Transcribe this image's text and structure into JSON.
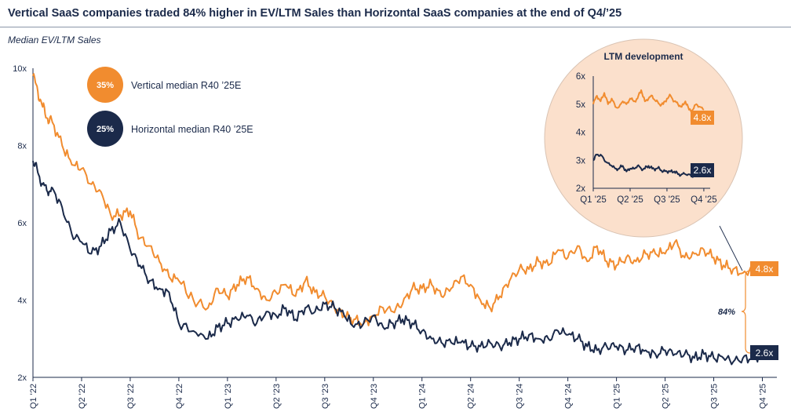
{
  "header": {
    "title": "Vertical SaaS companies traded 84% higher in EV/LTM Sales than Horizontal SaaS companies at the end of Q4/’25",
    "subtitle": "Median EV/LTM Sales"
  },
  "colors": {
    "vertical": "#f18c2f",
    "horizontal": "#1b2a4a",
    "inset_fill": "#fbe0cc",
    "text": "#1b2a4a"
  },
  "legend": [
    {
      "badge": "35%",
      "label": "Vertical median R40 ’25E"
    },
    {
      "badge": "25%",
      "label": "Horizontal median R40 ’25E"
    }
  ],
  "end_labels": {
    "vertical": "4.8x",
    "horizontal": "2.6x"
  },
  "difference_label": "84%",
  "chart_data": [
    {
      "type": "line",
      "title": "Median EV/LTM Sales",
      "ylim": [
        2,
        10
      ],
      "y_ticks": [
        "2x",
        "4x",
        "6x",
        "8x",
        "10x"
      ],
      "y_tick_values": [
        2,
        4,
        6,
        8,
        10
      ],
      "x_ticks": [
        "Q1 '22",
        "Q2 '22",
        "Q3 '22",
        "Q4 '22",
        "Q1 '23",
        "Q2 '23",
        "Q3 '23",
        "Q4 '23",
        "Q1 '24",
        "Q2 '24",
        "Q3 '24",
        "Q4 '24",
        "Q1 '25",
        "Q2 '25",
        "Q3 '25",
        "Q4 '25"
      ],
      "x_tick_values": [
        0,
        1,
        2,
        3,
        4,
        5,
        6,
        7,
        8,
        9,
        10,
        11,
        12,
        13,
        14,
        15
      ],
      "xlim": [
        0,
        15.25
      ],
      "series": [
        {
          "name": "Vertical SaaS",
          "x": [
            0,
            0.1,
            0.2,
            0.3,
            0.4,
            0.6,
            0.8,
            1.0,
            1.2,
            1.4,
            1.6,
            1.8,
            2.0,
            2.2,
            2.4,
            2.6,
            2.8,
            3.0,
            3.3,
            3.6,
            3.8,
            4.0,
            4.2,
            4.4,
            4.6,
            4.8,
            5.0,
            5.2,
            5.4,
            5.6,
            5.8,
            6.0,
            6.2,
            6.4,
            6.6,
            6.8,
            7.0,
            7.2,
            7.4,
            7.6,
            7.8,
            8.0,
            8.2,
            8.4,
            8.6,
            8.8,
            9.0,
            9.2,
            9.4,
            9.6,
            9.8,
            10.0,
            10.2,
            10.4,
            10.6,
            10.8,
            11.0,
            11.2,
            11.4,
            11.6,
            11.8,
            12.0,
            12.2,
            12.4,
            12.6,
            12.8,
            13.0,
            13.2,
            13.4,
            13.6,
            13.8,
            14.0,
            14.2,
            14.4,
            14.6,
            14.8,
            15.0
          ],
          "values": [
            9.8,
            9.4,
            9.0,
            8.7,
            8.6,
            8.0,
            7.5,
            7.4,
            7.0,
            6.8,
            6.2,
            6.2,
            6.3,
            5.6,
            5.4,
            5.0,
            4.6,
            4.5,
            4.0,
            3.8,
            4.3,
            4.1,
            4.4,
            4.6,
            4.3,
            4.0,
            4.2,
            4.4,
            4.1,
            4.5,
            4.2,
            4.1,
            3.8,
            3.6,
            3.5,
            3.4,
            3.6,
            3.8,
            3.7,
            3.9,
            4.3,
            4.3,
            4.4,
            4.1,
            4.3,
            4.6,
            4.4,
            4.0,
            3.8,
            4.1,
            4.5,
            4.8,
            4.8,
            5.0,
            4.9,
            5.3,
            5.1,
            5.4,
            5.0,
            5.4,
            5.0,
            4.9,
            5.1,
            5.0,
            5.2,
            5.2,
            5.2,
            5.5,
            5.1,
            5.2,
            5.3,
            5.1,
            4.9,
            4.8,
            4.7,
            4.8,
            4.8
          ]
        },
        {
          "name": "Horizontal SaaS",
          "x": [
            0,
            0.1,
            0.2,
            0.3,
            0.4,
            0.6,
            0.8,
            1.0,
            1.2,
            1.4,
            1.6,
            1.8,
            2.0,
            2.2,
            2.4,
            2.6,
            2.8,
            3.0,
            3.3,
            3.6,
            3.8,
            4.0,
            4.2,
            4.4,
            4.6,
            4.8,
            5.0,
            5.2,
            5.4,
            5.6,
            5.8,
            6.0,
            6.2,
            6.4,
            6.6,
            6.8,
            7.0,
            7.2,
            7.4,
            7.6,
            7.8,
            8.0,
            8.2,
            8.4,
            8.6,
            8.8,
            9.0,
            9.2,
            9.4,
            9.6,
            9.8,
            10.0,
            10.2,
            10.4,
            10.6,
            10.8,
            11.0,
            11.2,
            11.4,
            11.6,
            11.8,
            12.0,
            12.2,
            12.4,
            12.6,
            12.8,
            13.0,
            13.2,
            13.4,
            13.6,
            13.8,
            14.0,
            14.2,
            14.4,
            14.6,
            14.8,
            15.0
          ],
          "values": [
            7.6,
            7.3,
            7.0,
            6.8,
            6.9,
            6.4,
            5.7,
            5.5,
            5.2,
            5.4,
            5.8,
            6.0,
            5.3,
            4.9,
            4.5,
            4.3,
            4.2,
            3.4,
            3.2,
            3.0,
            3.3,
            3.4,
            3.5,
            3.6,
            3.4,
            3.7,
            3.6,
            3.8,
            3.5,
            3.8,
            3.7,
            3.9,
            3.8,
            3.6,
            3.3,
            3.4,
            3.6,
            3.3,
            3.4,
            3.5,
            3.4,
            3.2,
            3.0,
            2.9,
            2.9,
            2.9,
            2.8,
            2.8,
            2.9,
            2.8,
            2.9,
            3.0,
            3.1,
            3.0,
            3.0,
            3.2,
            3.1,
            3.0,
            2.8,
            2.7,
            2.8,
            2.8,
            2.7,
            2.8,
            2.7,
            2.6,
            2.7,
            2.6,
            2.6,
            2.5,
            2.6,
            2.5,
            2.5,
            2.4,
            2.5,
            2.5,
            2.6
          ]
        }
      ]
    },
    {
      "type": "line",
      "title": "LTM development",
      "ylim": [
        2,
        6
      ],
      "y_ticks": [
        "2x",
        "3x",
        "4x",
        "5x",
        "6x"
      ],
      "y_tick_values": [
        2,
        3,
        4,
        5,
        6
      ],
      "x_ticks": [
        "Q1 '25",
        "Q2 '25",
        "Q3 '25",
        "Q4 '25"
      ],
      "x_tick_values": [
        0,
        1,
        2,
        3
      ],
      "xlim": [
        0,
        3.3
      ],
      "series": [
        {
          "name": "Vertical SaaS",
          "x": [
            0,
            0.1,
            0.2,
            0.3,
            0.4,
            0.5,
            0.6,
            0.7,
            0.8,
            0.9,
            1.0,
            1.1,
            1.2,
            1.3,
            1.4,
            1.5,
            1.6,
            1.7,
            1.8,
            1.9,
            2.0,
            2.1,
            2.2,
            2.3,
            2.4,
            2.5,
            2.6,
            2.7,
            2.8,
            2.9,
            3.0
          ],
          "values": [
            5.0,
            5.3,
            5.1,
            5.4,
            5.0,
            5.2,
            4.9,
            4.9,
            5.1,
            5.0,
            5.2,
            5.1,
            5.2,
            5.5,
            5.1,
            5.2,
            5.3,
            5.1,
            5.0,
            5.0,
            5.2,
            5.3,
            5.1,
            5.0,
            4.9,
            5.1,
            4.8,
            4.8,
            5.0,
            4.9,
            4.8
          ]
        },
        {
          "name": "Horizontal SaaS",
          "x": [
            0,
            0.1,
            0.2,
            0.3,
            0.4,
            0.5,
            0.6,
            0.7,
            0.8,
            0.9,
            1.0,
            1.1,
            1.2,
            1.3,
            1.4,
            1.5,
            1.6,
            1.7,
            1.8,
            1.9,
            2.0,
            2.1,
            2.2,
            2.3,
            2.4,
            2.5,
            2.6,
            2.7,
            2.8,
            2.9,
            3.0
          ],
          "values": [
            3.0,
            3.2,
            3.2,
            3.0,
            2.9,
            2.8,
            2.7,
            2.7,
            2.8,
            2.6,
            2.7,
            2.7,
            2.8,
            2.7,
            2.7,
            2.8,
            2.7,
            2.7,
            2.7,
            2.6,
            2.6,
            2.6,
            2.6,
            2.5,
            2.5,
            2.5,
            2.5,
            2.4,
            2.5,
            2.6,
            2.6
          ]
        }
      ]
    }
  ]
}
